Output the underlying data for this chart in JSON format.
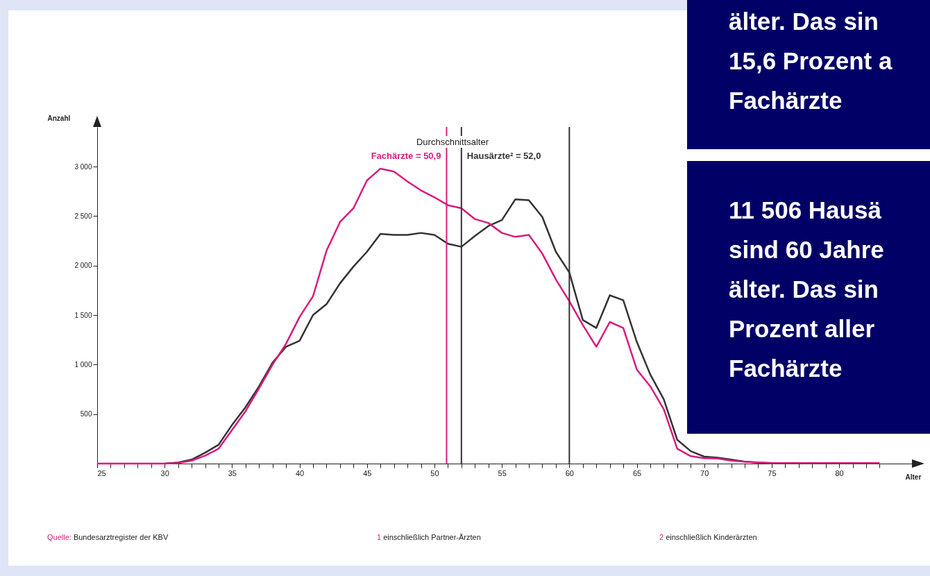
{
  "chart_data": {
    "type": "line",
    "xlabel": "Alter",
    "ylabel": "Anzahl",
    "x": [
      25,
      26,
      27,
      28,
      29,
      30,
      31,
      32,
      33,
      34,
      35,
      36,
      37,
      38,
      39,
      40,
      41,
      42,
      43,
      44,
      45,
      46,
      47,
      48,
      49,
      50,
      51,
      52,
      53,
      54,
      55,
      56,
      57,
      58,
      59,
      60,
      61,
      62,
      63,
      64,
      65,
      66,
      67,
      68,
      69,
      70,
      71,
      72,
      73,
      74,
      75,
      76,
      77,
      78,
      79,
      80,
      81,
      82,
      83
    ],
    "series": [
      {
        "color": "#d81b7f",
        "values": [
          0,
          0,
          0,
          0,
          0,
          0,
          5,
          30,
          80,
          150,
          340,
          530,
          760,
          1000,
          1210,
          1480,
          1690,
          2150,
          2440,
          2580,
          2860,
          2980,
          2950,
          2850,
          2760,
          2690,
          2610,
          2580,
          2470,
          2430,
          2330,
          2290,
          2310,
          2120,
          1860,
          1640,
          1400,
          1180,
          1430,
          1370,
          950,
          780,
          550,
          150,
          75,
          55,
          50,
          30,
          20,
          10,
          5,
          5,
          5,
          5,
          5,
          5,
          5,
          5,
          5
        ]
      },
      {
        "color": "#333333",
        "values": [
          null,
          null,
          null,
          null,
          null,
          0,
          10,
          40,
          110,
          190,
          390,
          570,
          780,
          1020,
          1180,
          1240,
          1500,
          1610,
          1820,
          1990,
          2140,
          2320,
          2310,
          2310,
          2330,
          2310,
          2220,
          2190,
          2300,
          2400,
          2460,
          2670,
          2660,
          2490,
          2140,
          1930,
          1450,
          1370,
          1700,
          1650,
          1230,
          900,
          650,
          240,
          125,
          70,
          60,
          40,
          20,
          10,
          5,
          null,
          null,
          null,
          null,
          null,
          null,
          null,
          null
        ]
      }
    ],
    "xlim": [
      25,
      85.5
    ],
    "xticks": [
      25,
      {
        "value": 26,
        "label": null
      },
      {
        "value": 27,
        "label": null
      },
      {
        "value": 28,
        "label": null
      },
      {
        "value": 29,
        "label": null
      },
      30,
      {
        "value": 31,
        "label": null
      },
      {
        "value": 32,
        "label": null
      },
      {
        "value": 33,
        "label": null
      },
      {
        "value": 34,
        "label": null
      },
      35,
      {
        "value": 36,
        "label": null
      },
      {
        "value": 37,
        "label": null
      },
      {
        "value": 38,
        "label": null
      },
      {
        "value": 39,
        "label": null
      },
      40,
      {
        "value": 41,
        "label": null
      },
      {
        "value": 42,
        "label": null
      },
      {
        "value": 43,
        "label": null
      },
      {
        "value": 44,
        "label": null
      },
      45,
      {
        "value": 46,
        "label": null
      },
      {
        "value": 47,
        "label": null
      },
      {
        "value": 48,
        "label": null
      },
      {
        "value": 49,
        "label": null
      },
      50,
      {
        "value": 51,
        "label": null
      },
      {
        "value": 52,
        "label": null
      },
      {
        "value": 53,
        "label": null
      },
      {
        "value": 54,
        "label": null
      },
      55,
      {
        "value": 56,
        "label": null
      },
      {
        "value": 57,
        "label": null
      },
      {
        "value": 58,
        "label": null
      },
      {
        "value": 59,
        "label": null
      },
      60,
      {
        "value": 61,
        "label": null
      },
      {
        "value": 62,
        "label": null
      },
      {
        "value": 63,
        "label": null
      },
      {
        "value": 64,
        "label": null
      },
      65,
      {
        "value": 66,
        "label": null
      },
      {
        "value": 67,
        "label": null
      },
      {
        "value": 68,
        "label": null
      },
      {
        "value": 69,
        "label": null
      },
      70,
      {
        "value": 71,
        "label": null
      },
      {
        "value": 72,
        "label": null
      },
      {
        "value": 73,
        "label": null
      },
      {
        "value": 74,
        "label": null
      },
      75,
      {
        "value": 76,
        "label": null
      },
      {
        "value": 77,
        "label": null
      },
      {
        "value": 78,
        "label": null
      },
      {
        "value": 79,
        "label": null
      },
      80,
      {
        "value": 81,
        "label": null
      },
      {
        "value": 82,
        "label": null
      },
      {
        "value": 83,
        "label": null
      }
    ],
    "ylim": [
      0,
      3400
    ],
    "yticks": [
      {
        "value": 500,
        "label": "500"
      },
      {
        "value": 1000,
        "label": "1 000"
      },
      {
        "value": 1500,
        "label": "1 500"
      },
      {
        "value": 2000,
        "label": "2 000"
      },
      {
        "value": 2500,
        "label": "2 500"
      },
      {
        "value": 3000,
        "label": "3 000"
      }
    ],
    "grid": false,
    "ref_lines": [
      {
        "axis": "x",
        "value": 50.9,
        "label": "Fachärzte = 50,9",
        "color": "#d81b7f"
      },
      {
        "axis": "x",
        "value": 52.0,
        "label": "Hausärzte² = 52,0",
        "color": "#333333"
      },
      {
        "axis": "x",
        "value": 60,
        "color": "#333333"
      }
    ],
    "annotations": [
      "älter. Das sin\n15,6 Prozent a\nFachärzte",
      "11 506 Hausä\nsind 60 Jahre\nälter. Das sin\nProzent aller\nFachärzte",
      "Durchschnittsalter",
      "Quelle: Bundesarztregister der KBV",
      "1 einschließlich Partner-Ärzten",
      "2 einschließlich Kinderärzten"
    ]
  }
}
